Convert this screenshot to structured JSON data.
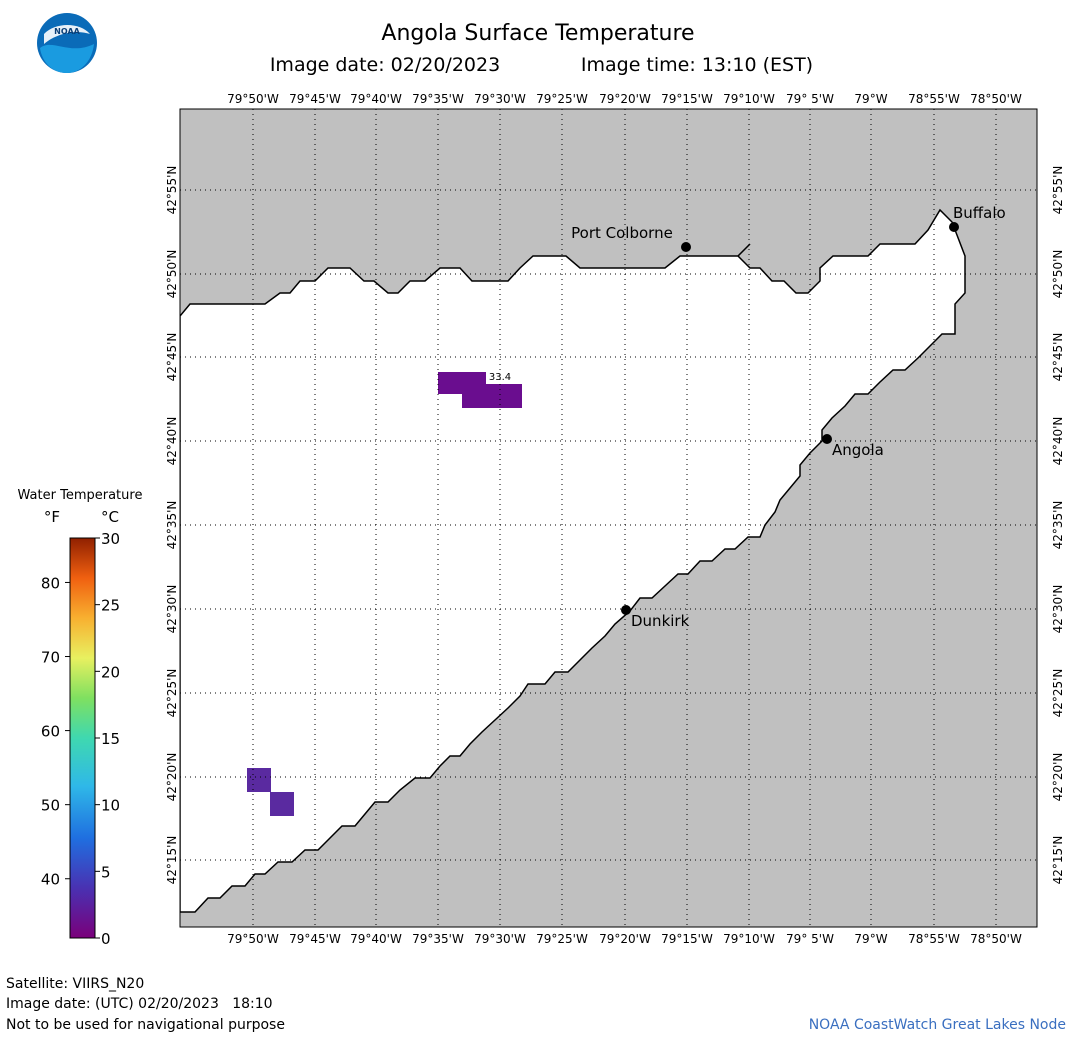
{
  "title": "Angola Surface Temperature",
  "image_date_label": "Image date: 02/20/2023",
  "image_time_label": "Image time: 13:10 (EST)",
  "logo_text": "NOAA",
  "map": {
    "lon_labels": [
      "79°50'W",
      "79°45'W",
      "79°40'W",
      "79°35'W",
      "79°30'W",
      "79°25'W",
      "79°20'W",
      "79°15'W",
      "79°10'W",
      "79° 5'W",
      "79°W",
      "78°55'W",
      "78°50'W"
    ],
    "lat_labels": [
      "42°55'N",
      "42°50'N",
      "42°45'N",
      "42°40'N",
      "42°35'N",
      "42°30'N",
      "42°25'N",
      "42°20'N",
      "42°15'N"
    ],
    "cities": [
      {
        "name": "Port Colborne"
      },
      {
        "name": "Buffalo"
      },
      {
        "name": "Angola"
      },
      {
        "name": "Dunkirk"
      }
    ],
    "sample_label": "33.4",
    "land_color": "#c0c0c0",
    "water_color": "#ffffff",
    "pixel_colors": [
      "#6a0d8f",
      "#5a2aa0"
    ]
  },
  "legend": {
    "title": "Water Temperature",
    "unit_f": "°F",
    "unit_c": "°C",
    "f_ticks": [
      "40",
      "50",
      "60",
      "70",
      "80"
    ],
    "c_ticks": [
      "0",
      "5",
      "10",
      "15",
      "20",
      "25",
      "30"
    ]
  },
  "footer": {
    "satellite": "Satellite: VIIRS_N20",
    "utc_date": "Image date: (UTC) 02/20/2023   18:10",
    "disclaimer": "Not to be used for navigational purpose",
    "credit": "NOAA CoastWatch Great Lakes Node"
  }
}
